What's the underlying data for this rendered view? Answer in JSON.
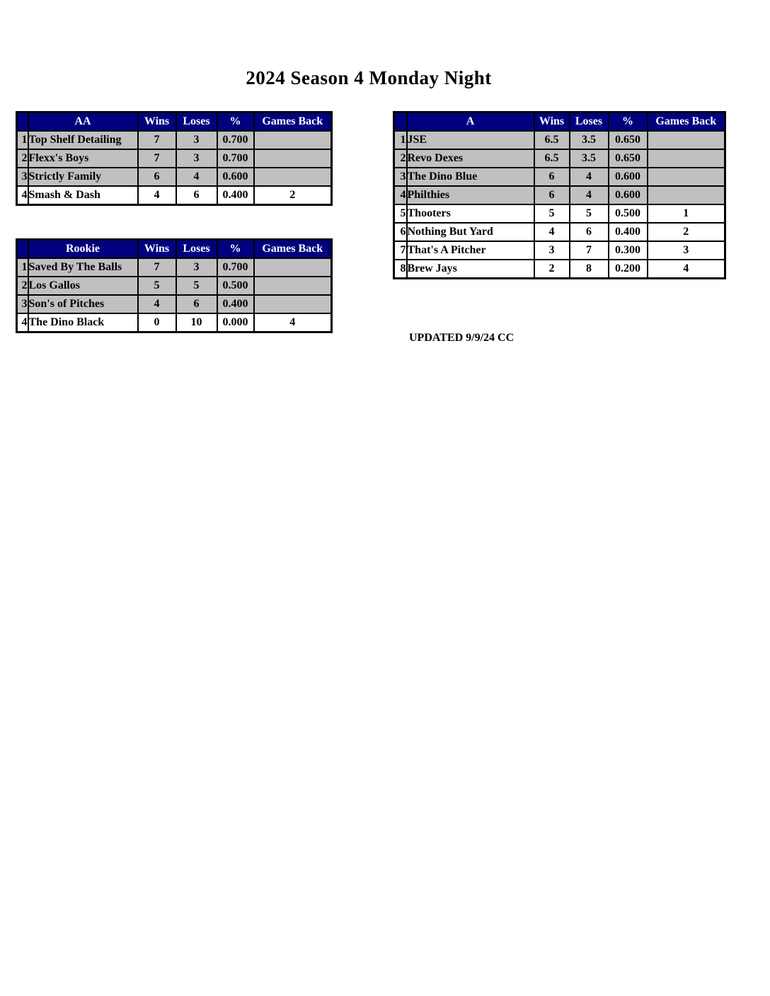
{
  "page": {
    "title": "2024 Season 4 Monday Night",
    "updated_note": "UPDATED 9/9/24 CC"
  },
  "colors": {
    "header_bg": "#010180",
    "header_text": "#FFFFFF",
    "row_shaded": "#C0C0C0",
    "row_plain": "#FFFFFF",
    "border": "#000000"
  },
  "tables": [
    {
      "division": "AA",
      "columns": [
        "Wins",
        "Loses",
        "%",
        "Games Back"
      ],
      "rows": [
        {
          "rank": "1",
          "team": "Top Shelf Detailing",
          "wins": "7",
          "loses": "3",
          "pct": "0.700",
          "games_back": "",
          "shaded": true
        },
        {
          "rank": "2",
          "team": "Flexx's Boys",
          "wins": "7",
          "loses": "3",
          "pct": "0.700",
          "games_back": "",
          "shaded": true
        },
        {
          "rank": "3",
          "team": "Strictly Family",
          "wins": "6",
          "loses": "4",
          "pct": "0.600",
          "games_back": "",
          "shaded": true
        },
        {
          "rank": "4",
          "team": "Smash & Dash",
          "wins": "4",
          "loses": "6",
          "pct": "0.400",
          "games_back": "2",
          "shaded": false
        }
      ]
    },
    {
      "division": "Rookie",
      "columns": [
        "Wins",
        "Loses",
        "%",
        "Games Back"
      ],
      "rows": [
        {
          "rank": "1",
          "team": "Saved By The Balls",
          "wins": "7",
          "loses": "3",
          "pct": "0.700",
          "games_back": "",
          "shaded": true
        },
        {
          "rank": "2",
          "team": "Los Gallos",
          "wins": "5",
          "loses": "5",
          "pct": "0.500",
          "games_back": "",
          "shaded": true
        },
        {
          "rank": "3",
          "team": "Son's of Pitches",
          "wins": "4",
          "loses": "6",
          "pct": "0.400",
          "games_back": "",
          "shaded": true
        },
        {
          "rank": "4",
          "team": "The Dino Black",
          "wins": "0",
          "loses": "10",
          "pct": "0.000",
          "games_back": "4",
          "shaded": false
        }
      ]
    },
    {
      "division": "A",
      "columns": [
        "Wins",
        "Loses",
        "%",
        "Games Back"
      ],
      "rows": [
        {
          "rank": "1",
          "team": "JSE",
          "wins": "6.5",
          "loses": "3.5",
          "pct": "0.650",
          "games_back": "",
          "shaded": true
        },
        {
          "rank": "2",
          "team": "Revo Dexes",
          "wins": "6.5",
          "loses": "3.5",
          "pct": "0.650",
          "games_back": "",
          "shaded": true
        },
        {
          "rank": "3",
          "team": "The Dino Blue",
          "wins": "6",
          "loses": "4",
          "pct": "0.600",
          "games_back": "",
          "shaded": true
        },
        {
          "rank": "4",
          "team": "Philthies",
          "wins": "6",
          "loses": "4",
          "pct": "0.600",
          "games_back": "",
          "shaded": true
        },
        {
          "rank": "5",
          "team": "Thooters",
          "wins": "5",
          "loses": "5",
          "pct": "0.500",
          "games_back": "1",
          "shaded": false
        },
        {
          "rank": "6",
          "team": "Nothing But Yard",
          "wins": "4",
          "loses": "6",
          "pct": "0.400",
          "games_back": "2",
          "shaded": false
        },
        {
          "rank": "7",
          "team": "That's A Pitcher",
          "wins": "3",
          "loses": "7",
          "pct": "0.300",
          "games_back": "3",
          "shaded": false
        },
        {
          "rank": "8",
          "team": "Brew Jays",
          "wins": "2",
          "loses": "8",
          "pct": "0.200",
          "games_back": "4",
          "shaded": false
        }
      ]
    }
  ]
}
